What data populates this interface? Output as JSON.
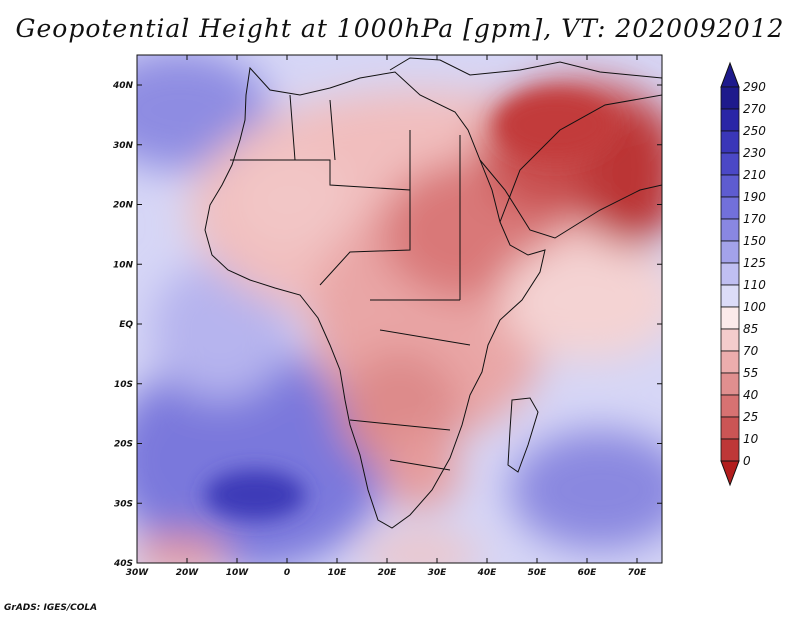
{
  "title": "Geopotential Height at 1000hPa [gpm], VT: 2020092012",
  "credit": "GrADS: IGES/COLA",
  "map": {
    "lon_labels": [
      "30W",
      "20W",
      "10W",
      "0",
      "10E",
      "20E",
      "30E",
      "40E",
      "50E",
      "60E",
      "70E"
    ],
    "lat_labels": [
      "40N",
      "30N",
      "20N",
      "10N",
      "EQ",
      "10S",
      "20S",
      "30S",
      "40S"
    ]
  },
  "colorbar": {
    "labels": [
      "290",
      "270",
      "250",
      "230",
      "210",
      "190",
      "170",
      "150",
      "125",
      "110",
      "100",
      "85",
      "70",
      "55",
      "40",
      "25",
      "10",
      "0"
    ],
    "colors": [
      "#1e1a8c",
      "#2a26a6",
      "#3a36b8",
      "#4b48c6",
      "#5e5cd0",
      "#7270da",
      "#8987e2",
      "#a3a2ea",
      "#c0bff2",
      "#dcdcf8",
      "#fbeaea",
      "#f4cccc",
      "#ecadad",
      "#e08f8f",
      "#d77272",
      "#cb5555",
      "#be3737",
      "#b21d1d"
    ]
  }
}
